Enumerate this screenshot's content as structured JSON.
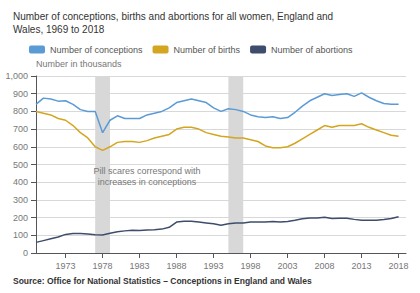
{
  "chart_data": {
    "type": "line",
    "title": "Number of conceptions, births and abortions for all women, England and\nWales, 1969 to 2018",
    "y_label": "Number in thousands",
    "source": "Source: Office for National Statistics – Conceptions in England and Wales",
    "annotations": [
      {
        "text": "Pill scares correspond with\nincreases in conceptions",
        "x": 1984,
        "y": 430
      }
    ],
    "shade_regions": [
      [
        1977,
        1979
      ],
      [
        1995,
        1997
      ]
    ],
    "shade_color": "#d8d8d8",
    "x": [
      1969,
      1970,
      1971,
      1972,
      1973,
      1974,
      1975,
      1976,
      1977,
      1978,
      1979,
      1980,
      1981,
      1982,
      1983,
      1984,
      1985,
      1986,
      1987,
      1988,
      1989,
      1990,
      1991,
      1992,
      1993,
      1994,
      1995,
      1996,
      1997,
      1998,
      1999,
      2000,
      2001,
      2002,
      2003,
      2004,
      2005,
      2006,
      2007,
      2008,
      2009,
      2010,
      2011,
      2012,
      2013,
      2014,
      2015,
      2016,
      2017,
      2018
    ],
    "series": [
      {
        "name": "Number of conceptions",
        "color": "#5b9bd5",
        "values": [
          840,
          875,
          870,
          858,
          860,
          840,
          810,
          800,
          800,
          680,
          750,
          775,
          760,
          760,
          760,
          780,
          790,
          800,
          820,
          850,
          860,
          870,
          860,
          850,
          820,
          800,
          815,
          810,
          800,
          780,
          770,
          765,
          770,
          760,
          765,
          795,
          830,
          860,
          880,
          900,
          890,
          895,
          900,
          885,
          905,
          880,
          860,
          845,
          840,
          840
        ]
      },
      {
        "name": "Number of births",
        "color": "#d4a520",
        "values": [
          800,
          790,
          780,
          760,
          750,
          720,
          680,
          650,
          600,
          580,
          600,
          625,
          630,
          630,
          625,
          635,
          650,
          660,
          670,
          700,
          710,
          710,
          700,
          680,
          670,
          660,
          655,
          650,
          650,
          640,
          630,
          605,
          595,
          595,
          600,
          620,
          645,
          670,
          695,
          720,
          710,
          720,
          720,
          720,
          730,
          710,
          695,
          680,
          665,
          660
        ]
      },
      {
        "name": "Number of abortions",
        "color": "#3d4d6b",
        "values": [
          60,
          70,
          80,
          90,
          105,
          110,
          110,
          108,
          103,
          102,
          112,
          120,
          125,
          128,
          127,
          130,
          132,
          135,
          145,
          175,
          180,
          180,
          175,
          170,
          165,
          157,
          165,
          170,
          170,
          175,
          175,
          175,
          178,
          175,
          178,
          185,
          193,
          198,
          198,
          202,
          195,
          196,
          196,
          190,
          185,
          185,
          185,
          189,
          195,
          205
        ]
      }
    ],
    "xlim": [
      1969,
      2019
    ],
    "xticks": [
      1973,
      1978,
      1983,
      1988,
      1993,
      1998,
      2003,
      2008,
      2013,
      2018
    ],
    "ylim": [
      0,
      1000
    ],
    "yticks": [
      0,
      100,
      200,
      300,
      400,
      500,
      600,
      700,
      800,
      900,
      {
        "value": 1000,
        "label": "1,000"
      }
    ],
    "grid": true,
    "legend": "top"
  }
}
